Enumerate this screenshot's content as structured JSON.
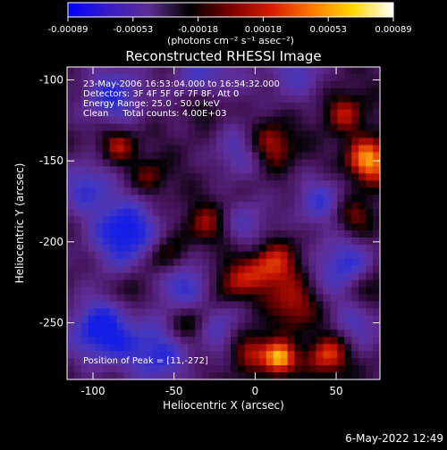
{
  "colorbar": {
    "ticks": [
      "-0.00089",
      "-0.00053",
      "-0.00018",
      "0.00018",
      "0.00053",
      "0.00089"
    ],
    "unit_label": "(photons cm⁻² s⁻¹ asec⁻²)",
    "stops": [
      "#0000ff",
      "#3a1cc8",
      "#5c2e90",
      "#000000",
      "#7a0000",
      "#d81c00",
      "#ff7a00",
      "#ffd800",
      "#ffffff"
    ]
  },
  "title": "Reconstructed RHESSI Image",
  "annotations": {
    "time_range": "23-May-2006 16:53:04.000 to 16:54:32.000",
    "detectors": "Detectors: 3F 4F 5F 6F 7F 8F, Att 0",
    "energy": "Energy Range: 25.0 - 50.0 keV",
    "method": "Clean     Total counts: 4.00E+03",
    "peak": "Position of Peak = [11,-272]"
  },
  "x_axis": {
    "label": "Heliocentric X (arcsec)",
    "ticks": [
      {
        "v": -100,
        "t": "-100"
      },
      {
        "v": -50,
        "t": "-50"
      },
      {
        "v": 0,
        "t": "0"
      },
      {
        "v": 50,
        "t": "50"
      }
    ],
    "range": [
      -116,
      77
    ]
  },
  "y_axis": {
    "label": "Heliocentric Y (arcsec)",
    "ticks": [
      {
        "v": -100,
        "t": "-100"
      },
      {
        "v": -150,
        "t": "-150"
      },
      {
        "v": -200,
        "t": "-200"
      },
      {
        "v": -250,
        "t": "-250"
      }
    ],
    "range": [
      -285,
      -92
    ]
  },
  "blobs": [
    {
      "x": -88,
      "y": -110,
      "a": -0.7,
      "r": 14
    },
    {
      "x": -30,
      "y": -100,
      "a": -0.6,
      "r": 16
    },
    {
      "x": 25,
      "y": -95,
      "a": -0.5,
      "r": 14
    },
    {
      "x": -80,
      "y": -195,
      "a": -0.9,
      "r": 16
    },
    {
      "x": -105,
      "y": -165,
      "a": -0.6,
      "r": 12
    },
    {
      "x": -45,
      "y": -225,
      "a": -0.7,
      "r": 14
    },
    {
      "x": -95,
      "y": -255,
      "a": -0.9,
      "r": 15
    },
    {
      "x": -60,
      "y": -270,
      "a": -0.7,
      "r": 14
    },
    {
      "x": -20,
      "y": -255,
      "a": -0.6,
      "r": 12
    },
    {
      "x": 55,
      "y": -215,
      "a": -0.7,
      "r": 14
    },
    {
      "x": 40,
      "y": -175,
      "a": -0.6,
      "r": 12
    },
    {
      "x": 65,
      "y": -250,
      "a": -0.5,
      "r": 12
    },
    {
      "x": -5,
      "y": -190,
      "a": -0.5,
      "r": 12
    },
    {
      "x": -10,
      "y": -145,
      "a": -0.5,
      "r": 12
    },
    {
      "x": -85,
      "y": -140,
      "a": 0.55,
      "r": 8
    },
    {
      "x": 10,
      "y": -140,
      "a": 0.6,
      "r": 10
    },
    {
      "x": 70,
      "y": -150,
      "a": 0.9,
      "r": 10
    },
    {
      "x": 55,
      "y": -120,
      "a": 0.5,
      "r": 9
    },
    {
      "x": -65,
      "y": -160,
      "a": 0.4,
      "r": 8
    },
    {
      "x": -55,
      "y": -210,
      "a": 0.7,
      "r": 9
    },
    {
      "x": -30,
      "y": -190,
      "a": 0.5,
      "r": 10
    },
    {
      "x": -15,
      "y": -225,
      "a": 0.5,
      "r": 10
    },
    {
      "x": 10,
      "y": -215,
      "a": 0.7,
      "r": 12
    },
    {
      "x": 25,
      "y": -240,
      "a": 0.5,
      "r": 10
    },
    {
      "x": 60,
      "y": -185,
      "a": 0.5,
      "r": 9
    },
    {
      "x": -40,
      "y": -250,
      "a": 0.5,
      "r": 9
    },
    {
      "x": -5,
      "y": -265,
      "a": 0.6,
      "r": 10
    },
    {
      "x": 15,
      "y": -272,
      "a": 1.0,
      "r": 7
    },
    {
      "x": 45,
      "y": -270,
      "a": 0.7,
      "r": 9
    },
    {
      "x": 70,
      "y": -230,
      "a": 0.5,
      "r": 9
    },
    {
      "x": -30,
      "y": -115,
      "a": 0.5,
      "r": 9
    },
    {
      "x": -75,
      "y": -230,
      "a": 0.4,
      "r": 8
    }
  ],
  "timestamp": "6-May-2022 12:49"
}
